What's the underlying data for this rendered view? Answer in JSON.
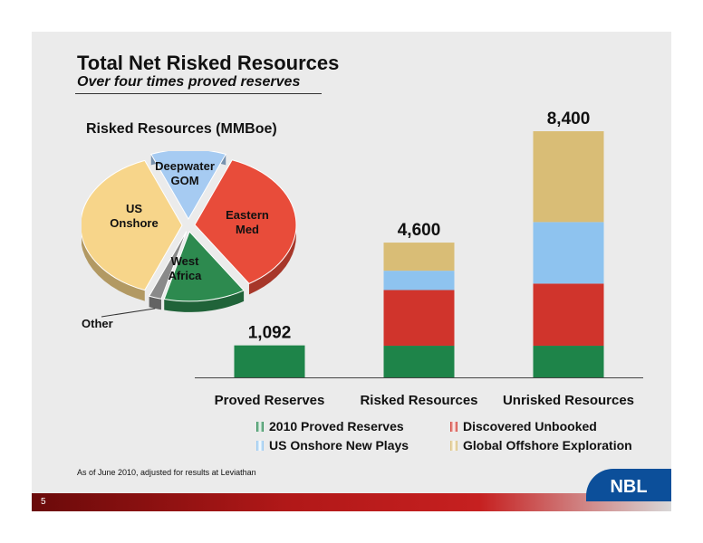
{
  "slide": {
    "title": "Total Net Risked Resources",
    "subtitle": "Over four times proved reserves",
    "footnote": "As of June 2010, adjusted for results at Leviathan",
    "page_number": "5",
    "logo_text": "NBL"
  },
  "pie": {
    "title": "Risked Resources (MMBoe)",
    "slices": [
      {
        "label_lines": [
          "Deepwater",
          "GOM"
        ],
        "value": 12,
        "color": "#a6cbf2"
      },
      {
        "label_lines": [
          "Eastern",
          "Med"
        ],
        "value": 35,
        "color": "#e84c3a"
      },
      {
        "label_lines": [
          "West",
          "Africa"
        ],
        "value": 13,
        "color": "#2d8a4f"
      },
      {
        "label_lines": [
          "Other"
        ],
        "value": 2,
        "color": "#8a8a8a"
      },
      {
        "label_lines": [
          "US",
          "Onshore"
        ],
        "value": 38,
        "color": "#f7d58a"
      }
    ]
  },
  "chart_data": {
    "type": "bar",
    "stacked": true,
    "categories": [
      "Proved Reserves",
      "Risked Resources",
      "Unrisked Resources"
    ],
    "totals": [
      "1,092",
      "4,600",
      "8,400"
    ],
    "ylim": [
      0,
      8400
    ],
    "grid": false,
    "legend_position": "bottom",
    "series": [
      {
        "name": "2010 Proved Reserves",
        "color": "#1e8449",
        "values": [
          1092,
          1080,
          1080
        ]
      },
      {
        "name": "Discovered Unbooked",
        "color": "#d0342c",
        "values": [
          0,
          1900,
          2120
        ]
      },
      {
        "name": "US Onshore New Plays",
        "color": "#8ec3ef",
        "values": [
          0,
          660,
          2100
        ]
      },
      {
        "name": "Global Offshore Exploration",
        "color": "#d9bd76",
        "values": [
          0,
          960,
          3100
        ]
      }
    ]
  }
}
